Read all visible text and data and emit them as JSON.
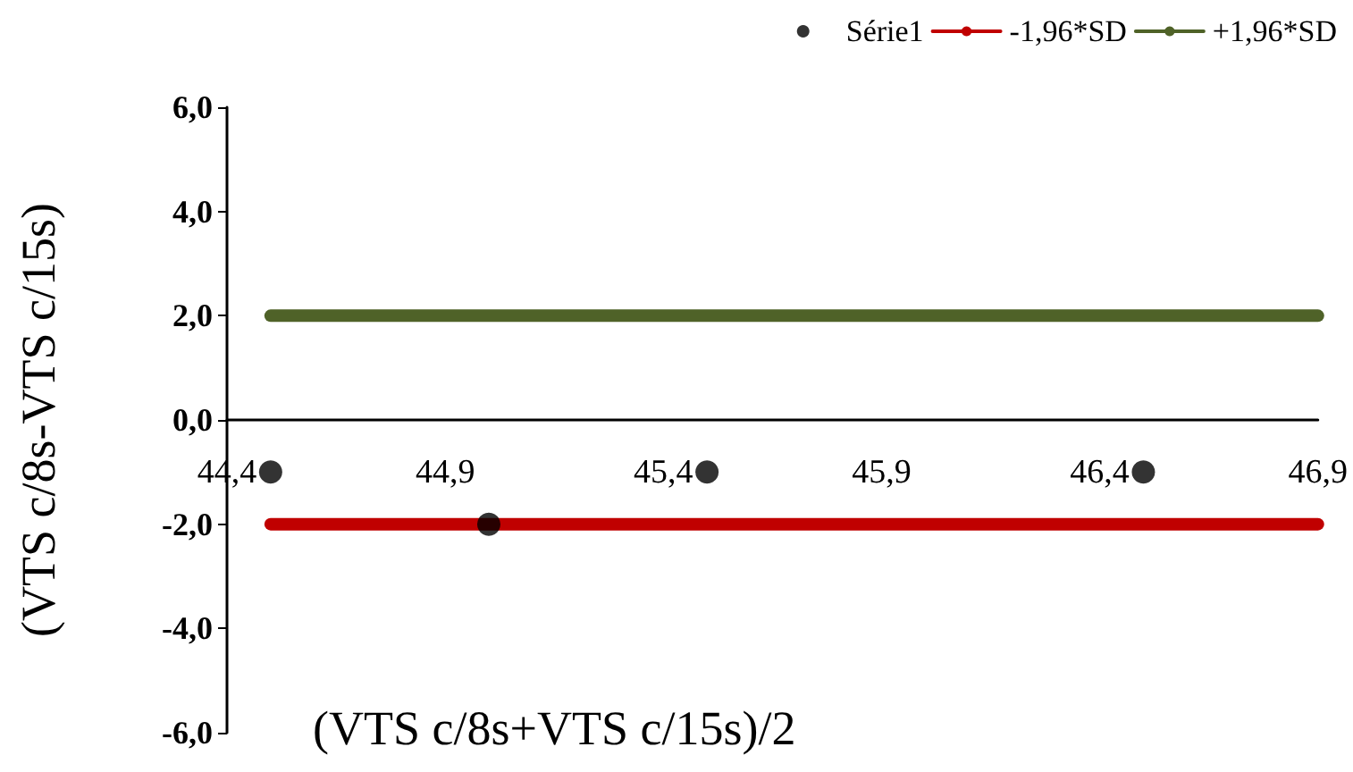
{
  "chart_data": {
    "type": "scatter",
    "xlabel": "(VTS c/8s+VTS c/15s)/2",
    "ylabel": "(VTS c/8s-VTS c/15s)",
    "xlim": [
      44.4,
      46.9
    ],
    "xticks": [
      {
        "value": 44.4,
        "label": "44,4"
      },
      {
        "value": 44.9,
        "label": "44,9"
      },
      {
        "value": 45.4,
        "label": "45,4"
      },
      {
        "value": 45.9,
        "label": "45,9"
      },
      {
        "value": 46.4,
        "label": "46,4"
      },
      {
        "value": 46.9,
        "label": "46,9"
      }
    ],
    "ylim": [
      -6,
      6
    ],
    "yticks": [
      {
        "value": -6,
        "label": "-6,0"
      },
      {
        "value": -4,
        "label": "-4,0"
      },
      {
        "value": -2,
        "label": "-2,0"
      },
      {
        "value": 0,
        "label": "0,0"
      },
      {
        "value": 2,
        "label": "2,0"
      },
      {
        "value": 4,
        "label": "4,0"
      },
      {
        "value": 6,
        "label": "6,0"
      }
    ],
    "grid": false,
    "legend": "top right",
    "series": [
      {
        "name": "Série1",
        "marker": "circle",
        "color": "#000000",
        "x": [
          44.5,
          45.0,
          45.5,
          46.5
        ],
        "values": [
          -1,
          -2,
          -1,
          -1
        ]
      },
      {
        "name": "-1,96*SD",
        "type": "line",
        "color": "#c00000",
        "x": [
          44.5,
          46.9
        ],
        "values": [
          -2,
          -2
        ]
      },
      {
        "name": "+1,96*SD",
        "type": "line",
        "color": "#4f6228",
        "x": [
          44.5,
          46.9
        ],
        "values": [
          2,
          2
        ]
      }
    ]
  }
}
